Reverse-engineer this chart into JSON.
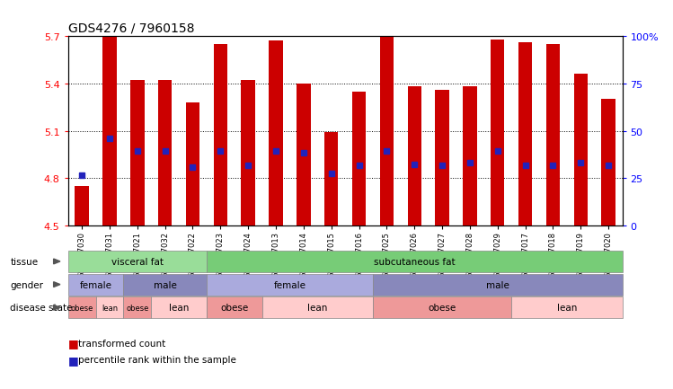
{
  "title": "GDS4276 / 7960158",
  "samples": [
    "GSM737030",
    "GSM737031",
    "GSM737021",
    "GSM737032",
    "GSM737022",
    "GSM737023",
    "GSM737024",
    "GSM737013",
    "GSM737014",
    "GSM737015",
    "GSM737016",
    "GSM737025",
    "GSM737026",
    "GSM737027",
    "GSM737028",
    "GSM737029",
    "GSM737017",
    "GSM737018",
    "GSM737019",
    "GSM737020"
  ],
  "bar_tops": [
    4.75,
    5.7,
    5.42,
    5.42,
    5.28,
    5.65,
    5.42,
    5.67,
    5.4,
    5.09,
    5.35,
    5.7,
    5.38,
    5.36,
    5.38,
    5.68,
    5.66,
    5.65,
    5.46,
    5.3
  ],
  "bar_base": 4.5,
  "blue_markers": [
    4.82,
    5.05,
    4.97,
    4.97,
    4.87,
    4.97,
    4.88,
    4.97,
    4.96,
    4.83,
    4.88,
    4.97,
    4.89,
    4.88,
    4.9,
    4.97,
    4.88,
    4.88,
    4.9,
    4.88
  ],
  "ylim_left": [
    4.5,
    5.7
  ],
  "yticks_left": [
    4.5,
    4.8,
    5.1,
    5.4,
    5.7
  ],
  "ylim_right": [
    0,
    100
  ],
  "yticks_right": [
    0,
    25,
    50,
    75,
    100
  ],
  "bar_color": "#CC0000",
  "blue_color": "#2222BB",
  "tissue_groups": [
    {
      "label": "visceral fat",
      "start": 0,
      "end": 5,
      "color": "#99DD99"
    },
    {
      "label": "subcutaneous fat",
      "start": 5,
      "end": 20,
      "color": "#77CC77"
    }
  ],
  "gender_groups": [
    {
      "label": "female",
      "start": 0,
      "end": 2,
      "color": "#AAAADD"
    },
    {
      "label": "male",
      "start": 2,
      "end": 5,
      "color": "#8888BB"
    },
    {
      "label": "female",
      "start": 5,
      "end": 11,
      "color": "#AAAADD"
    },
    {
      "label": "male",
      "start": 11,
      "end": 20,
      "color": "#8888BB"
    }
  ],
  "disease_groups": [
    {
      "label": "obese",
      "start": 0,
      "end": 1,
      "color": "#EE9999"
    },
    {
      "label": "lean",
      "start": 1,
      "end": 2,
      "color": "#FFCCCC"
    },
    {
      "label": "obese",
      "start": 2,
      "end": 3,
      "color": "#EE9999"
    },
    {
      "label": "lean",
      "start": 3,
      "end": 5,
      "color": "#FFCCCC"
    },
    {
      "label": "obese",
      "start": 5,
      "end": 7,
      "color": "#EE9999"
    },
    {
      "label": "lean",
      "start": 7,
      "end": 11,
      "color": "#FFCCCC"
    },
    {
      "label": "obese",
      "start": 11,
      "end": 16,
      "color": "#EE9999"
    },
    {
      "label": "lean",
      "start": 16,
      "end": 20,
      "color": "#FFCCCC"
    }
  ]
}
